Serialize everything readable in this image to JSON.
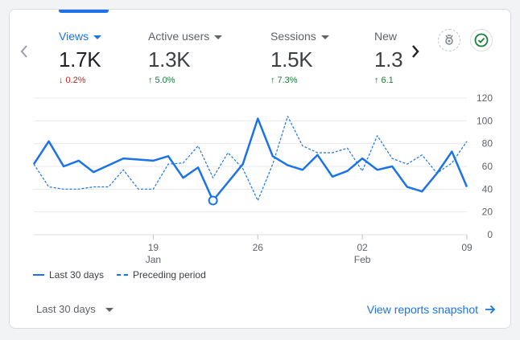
{
  "metrics": [
    {
      "label": "Views",
      "value": "1.7K",
      "change": "0.2%",
      "direction": "down"
    },
    {
      "label": "Active users",
      "value": "1.3K",
      "change": "5.0%",
      "direction": "up"
    },
    {
      "label": "Sessions",
      "value": "1.5K",
      "change": "7.3%",
      "direction": "up"
    },
    {
      "label": "New",
      "value": "1.3",
      "change": "6.1",
      "direction": "up"
    }
  ],
  "icons": {
    "prev": "chevron-left-icon",
    "next": "chevron-right-icon",
    "insight": "insights-icon",
    "check": "check-circle-icon"
  },
  "colors": {
    "accent": "#1a73e8",
    "down": "#c5221f",
    "up": "#188038"
  },
  "chart_data": {
    "type": "line",
    "y_ticks": [
      "120",
      "100",
      "80",
      "60",
      "40",
      "20",
      "0"
    ],
    "x_ticks": [
      {
        "label": "19",
        "sub": "Jan",
        "day": 8
      },
      {
        "label": "26",
        "sub": "",
        "day": 15
      },
      {
        "label": "02",
        "sub": "Feb",
        "day": 22
      },
      {
        "label": "09",
        "sub": "",
        "day": 29
      }
    ],
    "ylim": [
      0,
      120
    ],
    "series": [
      {
        "name": "Last 30 days",
        "style": "solid",
        "values": [
          62,
          82,
          60,
          65,
          55,
          61,
          67,
          66,
          65,
          69,
          50,
          59,
          30,
          46,
          62,
          102,
          69,
          61,
          57,
          70,
          51,
          56,
          67,
          57,
          60,
          42,
          38,
          54,
          73,
          42
        ]
      },
      {
        "name": "Preceding period",
        "style": "dashed",
        "values": [
          62,
          42,
          40,
          40,
          42,
          42,
          57,
          40,
          40,
          62,
          63,
          78,
          50,
          72,
          58,
          30,
          62,
          104,
          78,
          72,
          72,
          76,
          56,
          87,
          67,
          62,
          70,
          54,
          63,
          82
        ]
      }
    ],
    "highlight_index": 12
  },
  "footer": {
    "range": "Last 30 days",
    "snapshot_link": "View reports snapshot"
  }
}
